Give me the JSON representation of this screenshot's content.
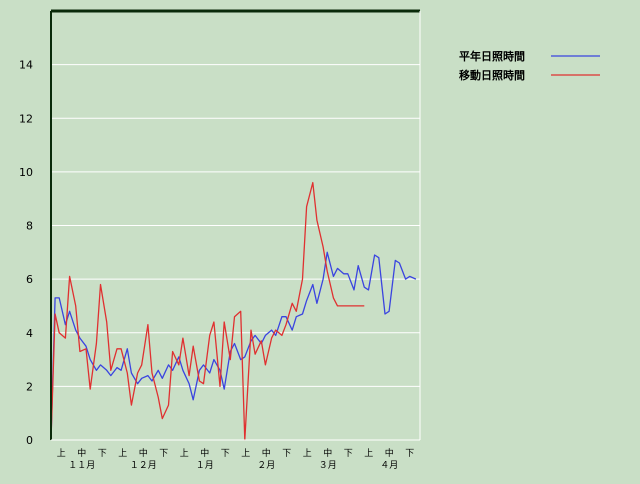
{
  "chart_data": {
    "type": "line",
    "title": "",
    "xlabel": "",
    "ylabel": "",
    "ylim": [
      0,
      16
    ],
    "y_ticks": [
      0,
      2,
      4,
      6,
      8,
      10,
      12,
      14
    ],
    "grid": true,
    "legend_position": "top-right",
    "x_period_labels": [
      "上",
      "中",
      "下",
      "上",
      "中",
      "下",
      "上",
      "中",
      "下",
      "上",
      "中",
      "下",
      "上",
      "中",
      "下",
      "上",
      "中",
      "下"
    ],
    "x_month_labels": [
      "１１月",
      "１２月",
      "１月",
      "２月",
      "３月",
      "４月"
    ],
    "x_day_range": [
      1,
      180
    ],
    "series": [
      {
        "name": "平年日照時間",
        "color": "#3a44e0",
        "x": [
          1,
          3,
          5,
          8,
          10,
          13,
          15,
          18,
          20,
          23,
          25,
          28,
          30,
          33,
          35,
          38,
          40,
          43,
          45,
          48,
          50,
          53,
          55,
          58,
          60,
          63,
          65,
          68,
          70,
          73,
          75,
          78,
          80,
          83,
          85,
          88,
          90,
          93,
          95,
          98,
          100,
          103,
          105,
          108,
          110,
          113,
          115,
          118,
          120,
          123,
          125,
          128,
          130,
          133,
          135,
          138,
          140,
          143,
          145,
          148,
          150,
          153,
          155,
          158,
          160,
          163,
          165,
          168,
          170,
          173,
          175,
          178
        ],
        "values": [
          0,
          5.3,
          5.3,
          4.3,
          4.8,
          4.1,
          3.8,
          3.5,
          3.0,
          2.6,
          2.8,
          2.6,
          2.4,
          2.7,
          2.6,
          3.4,
          2.5,
          2.1,
          2.3,
          2.4,
          2.2,
          2.6,
          2.3,
          2.8,
          2.6,
          3.1,
          2.6,
          2.1,
          1.5,
          2.6,
          2.8,
          2.5,
          3.0,
          2.6,
          1.9,
          3.3,
          3.6,
          3.0,
          3.1,
          3.7,
          3.9,
          3.6,
          3.9,
          4.1,
          3.9,
          4.6,
          4.6,
          4.1,
          4.6,
          4.7,
          5.2,
          5.8,
          5.1,
          6.0,
          7.0,
          6.1,
          6.4,
          6.2,
          6.2,
          5.6,
          6.5,
          5.7,
          5.6,
          6.9,
          6.8,
          4.7,
          4.8,
          6.7,
          6.6,
          6.0,
          6.1,
          6.0
        ]
      },
      {
        "name": "移動日照時間",
        "color": "#e03030",
        "x": [
          1,
          3,
          5,
          8,
          10,
          13,
          15,
          18,
          20,
          23,
          25,
          28,
          30,
          33,
          35,
          38,
          40,
          43,
          45,
          48,
          50,
          53,
          55,
          58,
          60,
          63,
          65,
          68,
          70,
          73,
          75,
          78,
          80,
          83,
          85,
          88,
          90,
          93,
          95,
          98,
          100,
          103,
          105,
          108,
          110,
          113,
          115,
          118,
          120,
          123,
          125,
          128,
          130,
          133,
          135,
          138,
          140,
          143,
          145,
          148,
          150,
          153
        ],
        "values": [
          0,
          4.7,
          4.0,
          3.8,
          6.1,
          5.0,
          3.3,
          3.4,
          1.9,
          3.6,
          5.8,
          4.4,
          2.6,
          3.4,
          3.4,
          2.5,
          1.3,
          2.5,
          2.8,
          4.3,
          2.5,
          1.6,
          0.8,
          1.3,
          3.3,
          2.8,
          3.8,
          2.4,
          3.5,
          2.2,
          2.1,
          3.9,
          4.4,
          2.0,
          4.4,
          3.0,
          4.6,
          4.8,
          0.0,
          4.1,
          3.2,
          3.7,
          2.8,
          3.8,
          4.1,
          3.9,
          4.3,
          5.1,
          4.8,
          6.0,
          8.7,
          9.6,
          8.2,
          7.2,
          6.3,
          5.3,
          5.0,
          5.0,
          5.0,
          5.0,
          5.0,
          5.0
        ]
      }
    ]
  }
}
